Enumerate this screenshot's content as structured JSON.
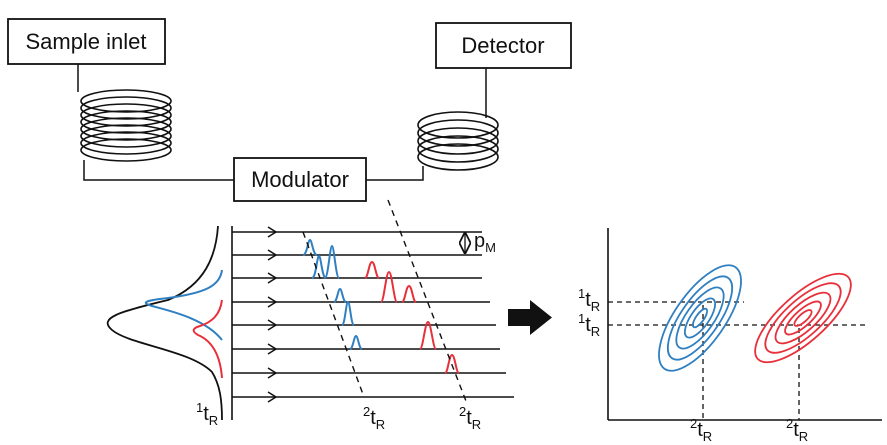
{
  "boxes": {
    "sample_inlet": "Sample inlet",
    "detector": "Detector",
    "modulator": "Modulator"
  },
  "modulation_period": {
    "symbol": "p",
    "subscript": "M"
  },
  "first_dim_retention": {
    "superscript": "1",
    "symbol": "t",
    "subscript": "R"
  },
  "second_dim_retention": {
    "superscript": "2",
    "symbol": "t",
    "subscript": "R"
  },
  "colors": {
    "line": "#111111",
    "compound_a": "#2f7fc1",
    "compound_b": "#e8303a"
  }
}
